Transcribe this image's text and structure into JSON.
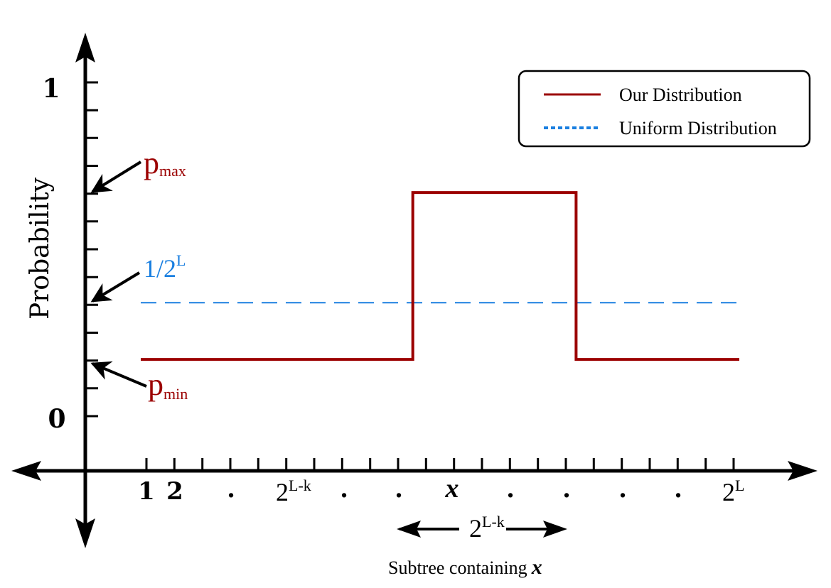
{
  "colors": {
    "axis": "#000000",
    "ours": "#9b0000",
    "uniform": "#1a7fe0",
    "legend_border": "#000000"
  },
  "y_axis": {
    "label": "Probability",
    "tick_top": "1",
    "tick_bottom": "0"
  },
  "annotations": {
    "pmax_base": "p",
    "pmax_sub": "max",
    "uniform_base": "1/2",
    "uniform_sup": "L",
    "pmin_base": "p",
    "pmin_sub": "min"
  },
  "x_axis": {
    "label_1": "1",
    "label_2": "2",
    "dot_a": ".",
    "mid_base": "2",
    "mid_sup": "L-k",
    "dot_b": ".",
    "dot_c": ".",
    "x_label": "x",
    "dot_d": ".",
    "dot_e": ".",
    "dot_f": ".",
    "dot_g": ".",
    "end_base": "2",
    "end_sup": "L"
  },
  "subtree": {
    "span_base": "2",
    "span_sup": "L-k",
    "caption": "Subtree containing",
    "caption_var": "x"
  },
  "legend": {
    "ours": "Our Distribution",
    "uniform": "Uniform Distribution"
  },
  "chart_data": {
    "type": "line",
    "ylim": [
      0,
      1
    ],
    "series": [
      {
        "name": "Our Distribution",
        "x": [
          1,
          11,
          11,
          17,
          17,
          23
        ],
        "y": [
          0.17,
          0.17,
          0.67,
          0.67,
          0.17,
          0.17
        ]
      },
      {
        "name": "Uniform Distribution",
        "x": [
          1,
          23
        ],
        "y": [
          0.34,
          0.34
        ]
      }
    ]
  }
}
